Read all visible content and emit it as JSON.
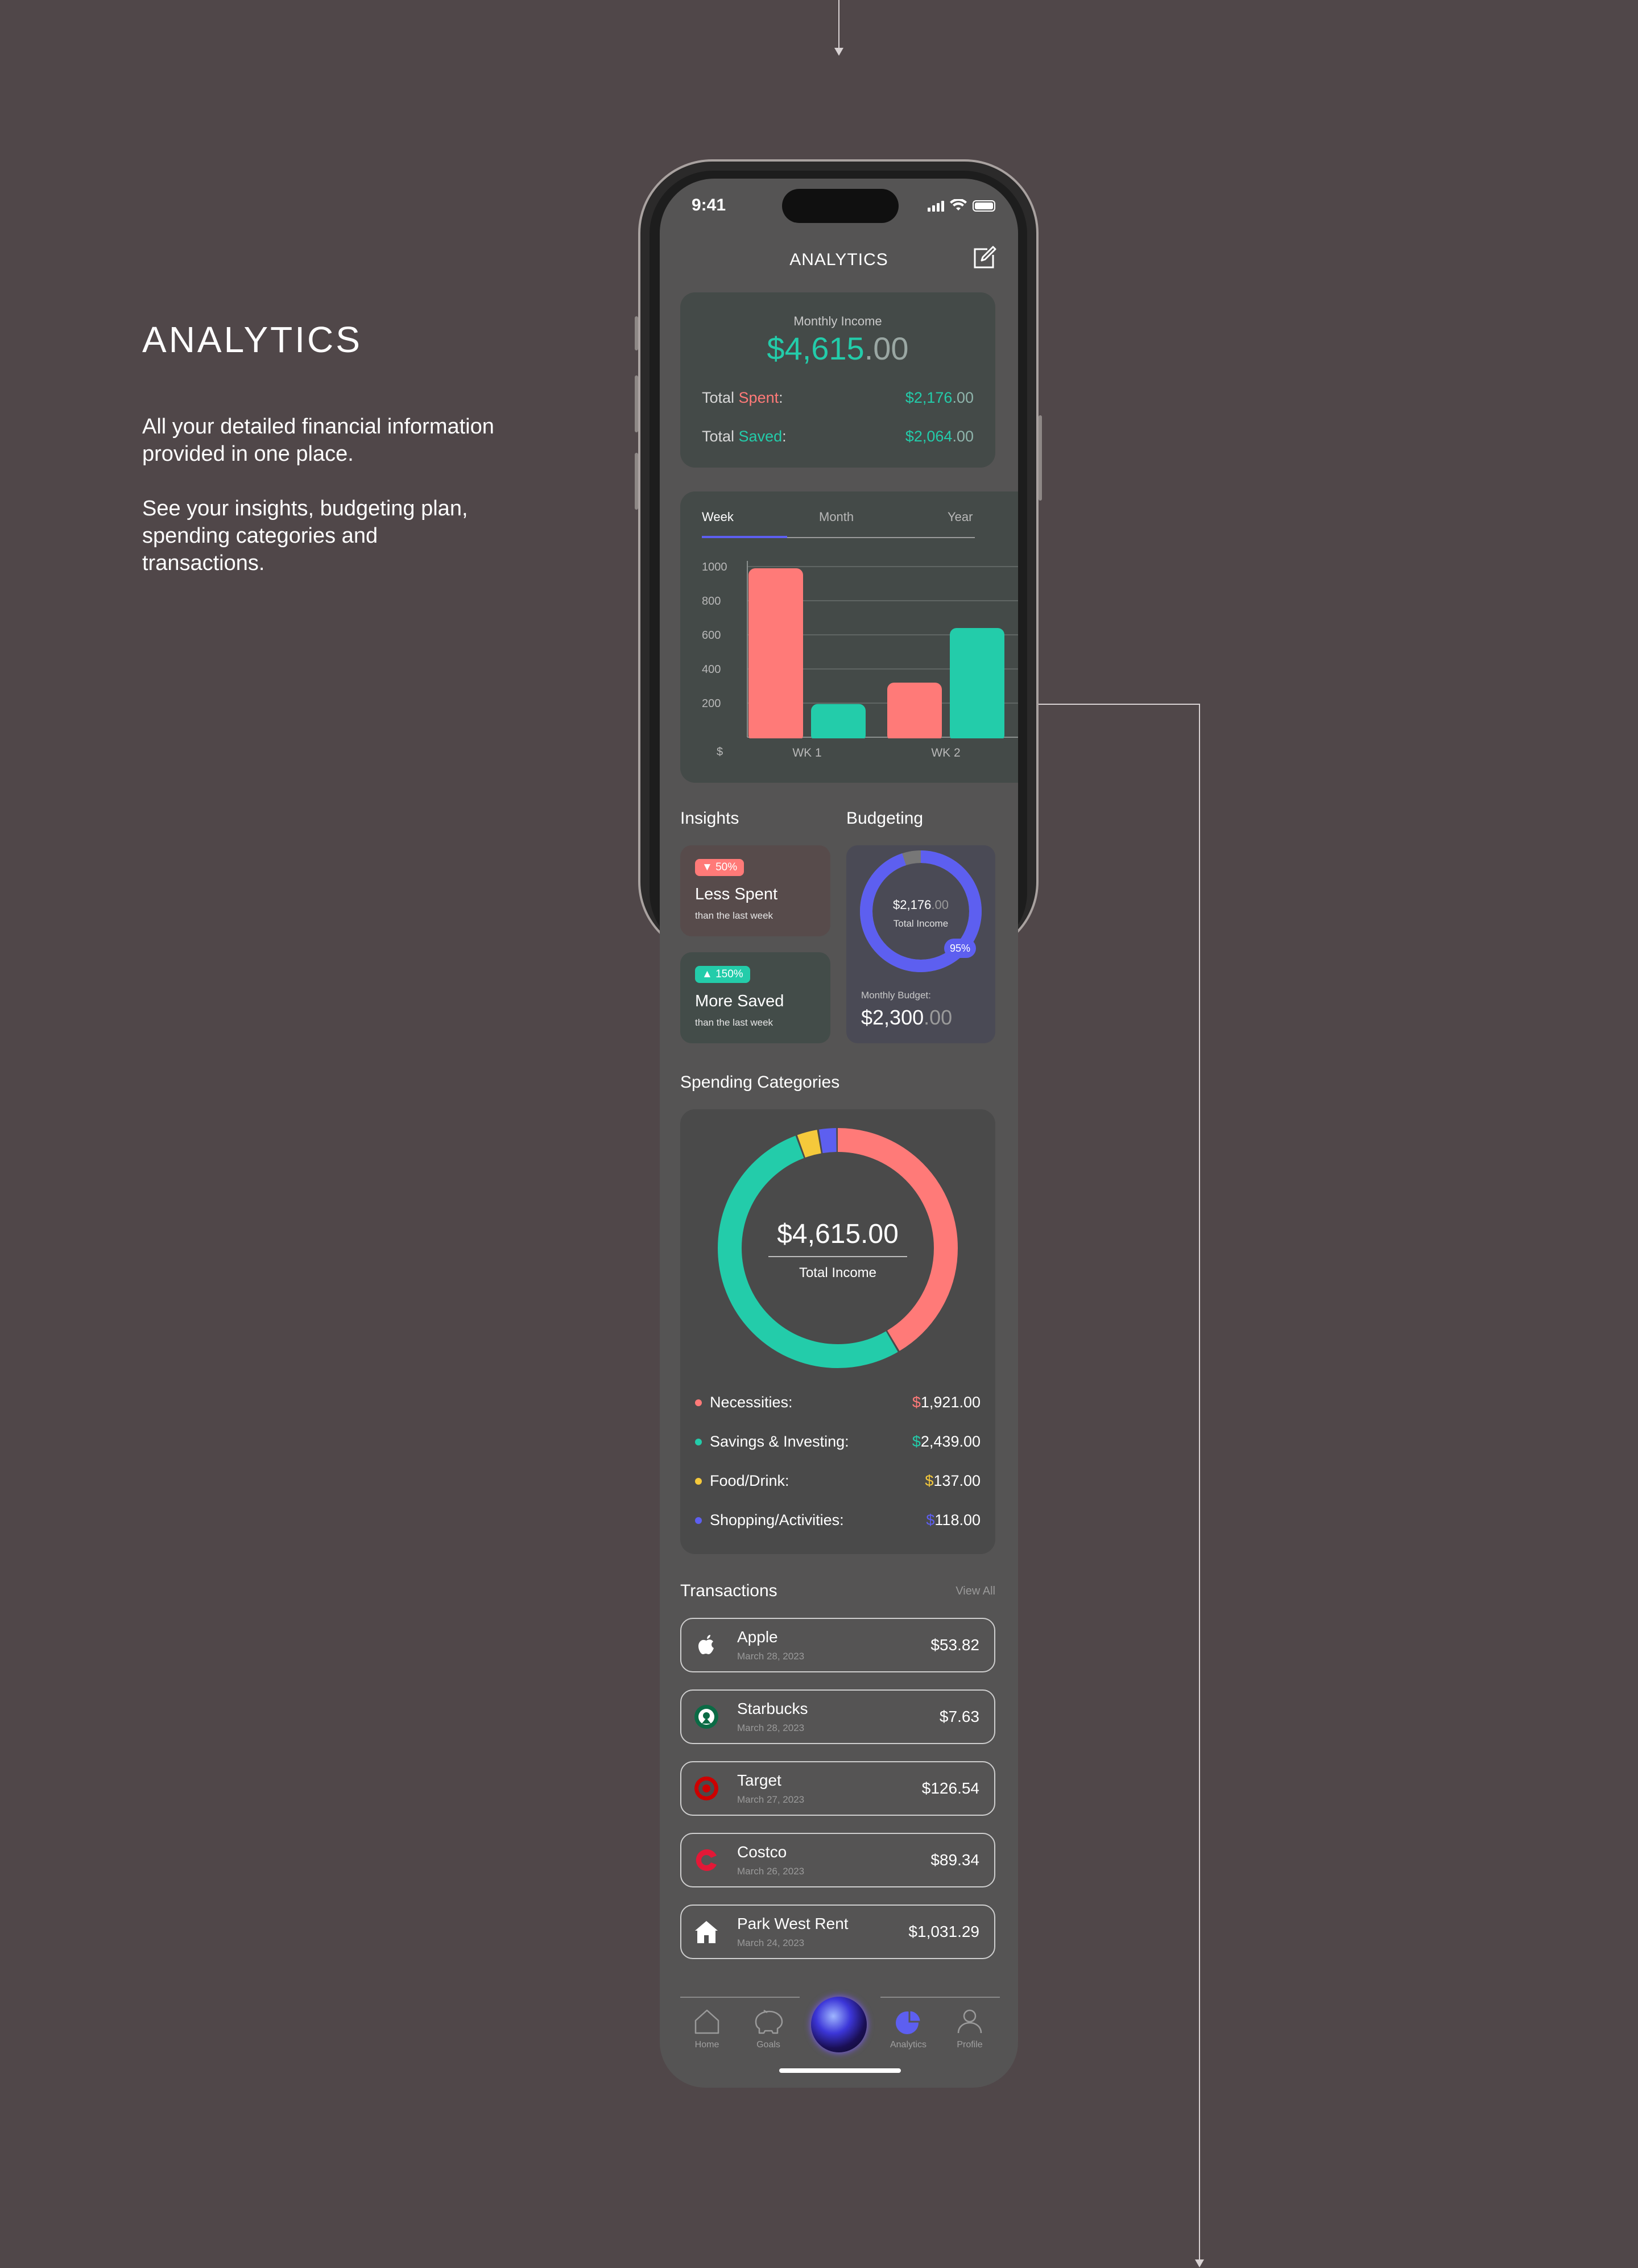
{
  "side": {
    "title": "ANALYTICS",
    "p1": "All your detailed financial information provided in one place.",
    "p2": "See your insights, budgeting plan, spending categories and transactions."
  },
  "status": {
    "time": "9:41"
  },
  "header": {
    "title": "ANALYTICS",
    "edit_icon": "edit-icon"
  },
  "income": {
    "label": "Monthly Income",
    "value_main": "$4,615",
    "value_cents": ".00",
    "spent_prefix": "Total ",
    "spent_word": "Spent",
    "spent_suffix": ":",
    "spent_main": "$2,176",
    "spent_cents": ".00",
    "saved_prefix": "Total ",
    "saved_word": "Saved",
    "saved_suffix": ":",
    "saved_main": "$2,064",
    "saved_cents": ".00"
  },
  "chart_tabs": [
    "Week",
    "Month",
    "Year"
  ],
  "chart_data": {
    "type": "bar",
    "categories": [
      "WK 1",
      "WK 2"
    ],
    "series": [
      {
        "name": "",
        "color": "#ff7a78",
        "values": [
          990,
          320
        ]
      },
      {
        "name": "",
        "color": "#23ccaa",
        "values": [
          195,
          640
        ]
      }
    ],
    "yticks": [
      "1000",
      "800",
      "600",
      "400",
      "200",
      "$"
    ],
    "ylim": [
      0,
      1000
    ],
    "grid": true
  },
  "insights": {
    "title": "Insights",
    "card1": {
      "pill": "50%",
      "title": "Less Spent",
      "sub": "than the last week"
    },
    "card2": {
      "pill": "150%",
      "title": "More Saved",
      "sub": "than the last week"
    }
  },
  "budgeting": {
    "title": "Budgeting",
    "ring_main": "$2,176",
    "ring_cents": ".00",
    "ring_label": "Total Income",
    "percent": "95%",
    "budget_label": "Monthly Budget:",
    "budget_main": "$2,300",
    "budget_cents": ".00",
    "progress": 0.95
  },
  "spending": {
    "title": "Spending Categories",
    "total": "$4,615.00",
    "total_label": "Total Income",
    "categories": [
      {
        "label": "Necessities:",
        "currency": "$",
        "amount": "1,921.00",
        "color": "#ff7a78",
        "value": 1921
      },
      {
        "label": "Savings & Investing:",
        "currency": "$",
        "amount": "2,439.00",
        "color": "#23ccaa",
        "value": 2439
      },
      {
        "label": "Food/Drink:",
        "currency": "$",
        "amount": "137.00",
        "color": "#f5c93b",
        "value": 137
      },
      {
        "label": "Shopping/Activities:",
        "currency": "$",
        "amount": "118.00",
        "color": "#5d5ff0",
        "value": 118
      }
    ]
  },
  "transactions": {
    "title": "Transactions",
    "view_all": "View All",
    "items": [
      {
        "name": "Apple",
        "date": "March 28, 2023",
        "amount": "$53.82",
        "icon": "apple-icon"
      },
      {
        "name": "Starbucks",
        "date": "March 28, 2023",
        "amount": "$7.63",
        "icon": "starbucks-icon"
      },
      {
        "name": "Target",
        "date": "March 27, 2023",
        "amount": "$126.54",
        "icon": "target-icon"
      },
      {
        "name": "Costco",
        "date": "March 26, 2023",
        "amount": "$89.34",
        "icon": "costco-icon"
      },
      {
        "name": "Park West Rent",
        "date": "March 24, 2023",
        "amount": "$1,031.29",
        "icon": "home-icon"
      }
    ]
  },
  "tabbar": {
    "home": "Home",
    "goals": "Goals",
    "analytics": "Analytics",
    "profile": "Profile",
    "active_color": "#5d5ff0"
  }
}
